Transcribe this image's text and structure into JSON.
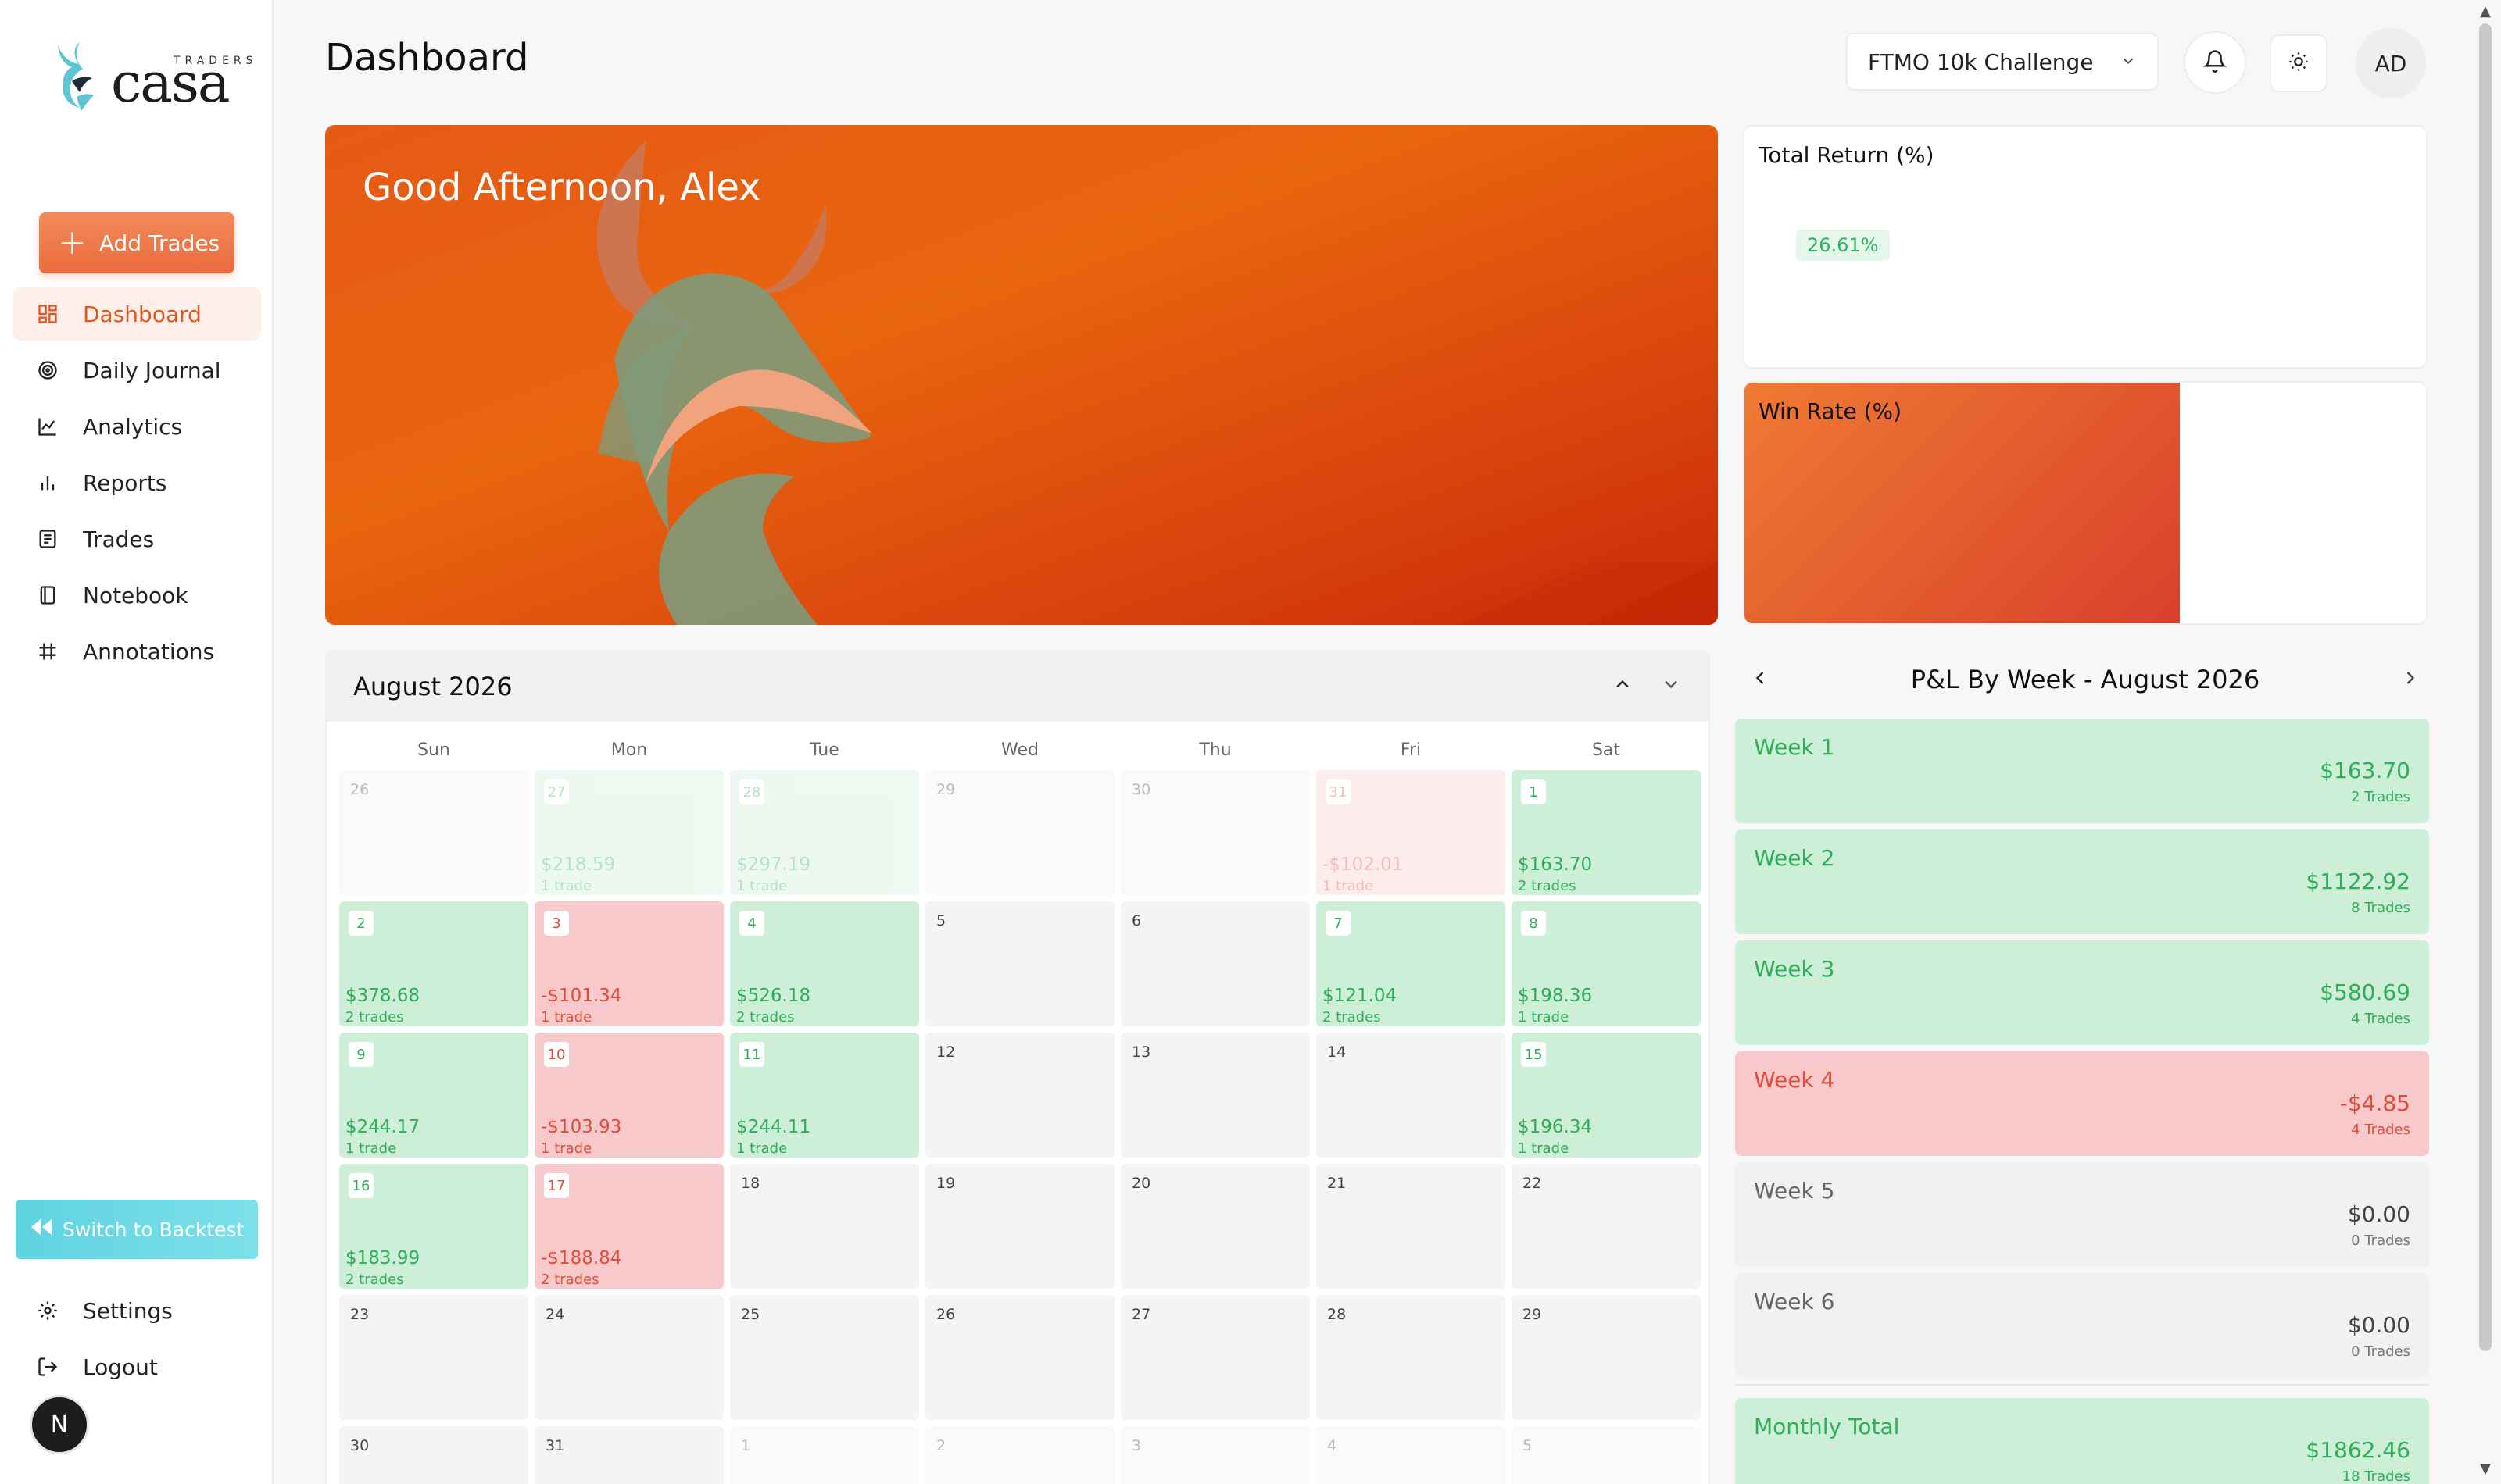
{
  "brand": {
    "small": "TRADERS",
    "name": "casa"
  },
  "sidebar": {
    "add_trades": "Add Trades",
    "items": [
      {
        "label": "Dashboard",
        "icon": "dashboard-icon",
        "active": true
      },
      {
        "label": "Daily Journal",
        "icon": "target-icon"
      },
      {
        "label": "Analytics",
        "icon": "line-chart-icon"
      },
      {
        "label": "Reports",
        "icon": "bar-chart-icon"
      },
      {
        "label": "Trades",
        "icon": "list-icon"
      },
      {
        "label": "Notebook",
        "icon": "notebook-icon"
      },
      {
        "label": "Annotations",
        "icon": "hashtag-icon"
      }
    ],
    "switch_backtest": "Switch to Backtest",
    "settings": "Settings",
    "logout": "Logout",
    "avatar_letter": "N"
  },
  "header": {
    "title": "Dashboard",
    "account": "FTMO 10k Challenge",
    "user_initials": "AD"
  },
  "hero": {
    "greeting": "Good Afternoon, Alex"
  },
  "stats": {
    "total_return_title": "Total Return (%)",
    "total_return_value": "26.61%",
    "win_rate_title": "Win Rate (%)"
  },
  "calendar": {
    "month": "August 2026",
    "days_of_week": [
      "Sun",
      "Mon",
      "Tue",
      "Wed",
      "Thu",
      "Fri",
      "Sat"
    ],
    "cells": [
      {
        "day": "26",
        "type": "out"
      },
      {
        "day": "27",
        "type": "g",
        "faded": true,
        "pnl": "$218.59",
        "count": "1 trade"
      },
      {
        "day": "28",
        "type": "g",
        "faded": true,
        "pnl": "$297.19",
        "count": "1 trade"
      },
      {
        "day": "29",
        "type": "out"
      },
      {
        "day": "30",
        "type": "out"
      },
      {
        "day": "31",
        "type": "r",
        "faded": true,
        "pnl": "-$102.01",
        "count": "1 trade"
      },
      {
        "day": "1",
        "type": "g",
        "pnl": "$163.70",
        "count": "2 trades"
      },
      {
        "day": "2",
        "type": "g",
        "pnl": "$378.68",
        "count": "2 trades"
      },
      {
        "day": "3",
        "type": "r",
        "pnl": "-$101.34",
        "count": "1 trade"
      },
      {
        "day": "4",
        "type": "g",
        "pnl": "$526.18",
        "count": "2 trades"
      },
      {
        "day": "5",
        "type": "e"
      },
      {
        "day": "6",
        "type": "e"
      },
      {
        "day": "7",
        "type": "g",
        "pnl": "$121.04",
        "count": "2 trades"
      },
      {
        "day": "8",
        "type": "g",
        "pnl": "$198.36",
        "count": "1 trade"
      },
      {
        "day": "9",
        "type": "g",
        "pnl": "$244.17",
        "count": "1 trade"
      },
      {
        "day": "10",
        "type": "r",
        "pnl": "-$103.93",
        "count": "1 trade"
      },
      {
        "day": "11",
        "type": "g",
        "pnl": "$244.11",
        "count": "1 trade"
      },
      {
        "day": "12",
        "type": "e"
      },
      {
        "day": "13",
        "type": "e"
      },
      {
        "day": "14",
        "type": "e"
      },
      {
        "day": "15",
        "type": "g",
        "pnl": "$196.34",
        "count": "1 trade"
      },
      {
        "day": "16",
        "type": "g",
        "pnl": "$183.99",
        "count": "2 trades"
      },
      {
        "day": "17",
        "type": "r",
        "pnl": "-$188.84",
        "count": "2 trades"
      },
      {
        "day": "18",
        "type": "e"
      },
      {
        "day": "19",
        "type": "e"
      },
      {
        "day": "20",
        "type": "e"
      },
      {
        "day": "21",
        "type": "e"
      },
      {
        "day": "22",
        "type": "e"
      },
      {
        "day": "23",
        "type": "e"
      },
      {
        "day": "24",
        "type": "e"
      },
      {
        "day": "25",
        "type": "e"
      },
      {
        "day": "26",
        "type": "e"
      },
      {
        "day": "27",
        "type": "e"
      },
      {
        "day": "28",
        "type": "e"
      },
      {
        "day": "29",
        "type": "e"
      },
      {
        "day": "30",
        "type": "e"
      },
      {
        "day": "31",
        "type": "e"
      },
      {
        "day": "1",
        "type": "out"
      },
      {
        "day": "2",
        "type": "out"
      },
      {
        "day": "3",
        "type": "out"
      },
      {
        "day": "4",
        "type": "out"
      },
      {
        "day": "5",
        "type": "out"
      }
    ]
  },
  "weekly": {
    "title": "P&L By Week - August 2026",
    "weeks": [
      {
        "name": "Week 1",
        "value": "$163.70",
        "trades": "2 Trades",
        "type": "g"
      },
      {
        "name": "Week 2",
        "value": "$1122.92",
        "trades": "8 Trades",
        "type": "g"
      },
      {
        "name": "Week 3",
        "value": "$580.69",
        "trades": "4 Trades",
        "type": "g"
      },
      {
        "name": "Week 4",
        "value": "-$4.85",
        "trades": "4 Trades",
        "type": "r"
      },
      {
        "name": "Week 5",
        "value": "$0.00",
        "trades": "0 Trades",
        "type": "n"
      },
      {
        "name": "Week 6",
        "value": "$0.00",
        "trades": "0 Trades",
        "type": "n"
      }
    ],
    "total": {
      "name": "Monthly Total",
      "value": "$1862.46",
      "trades": "18 Trades"
    }
  },
  "colors": {
    "accent": "#e2571d",
    "profit": "#2fae5a",
    "loss": "#e04b3a"
  }
}
